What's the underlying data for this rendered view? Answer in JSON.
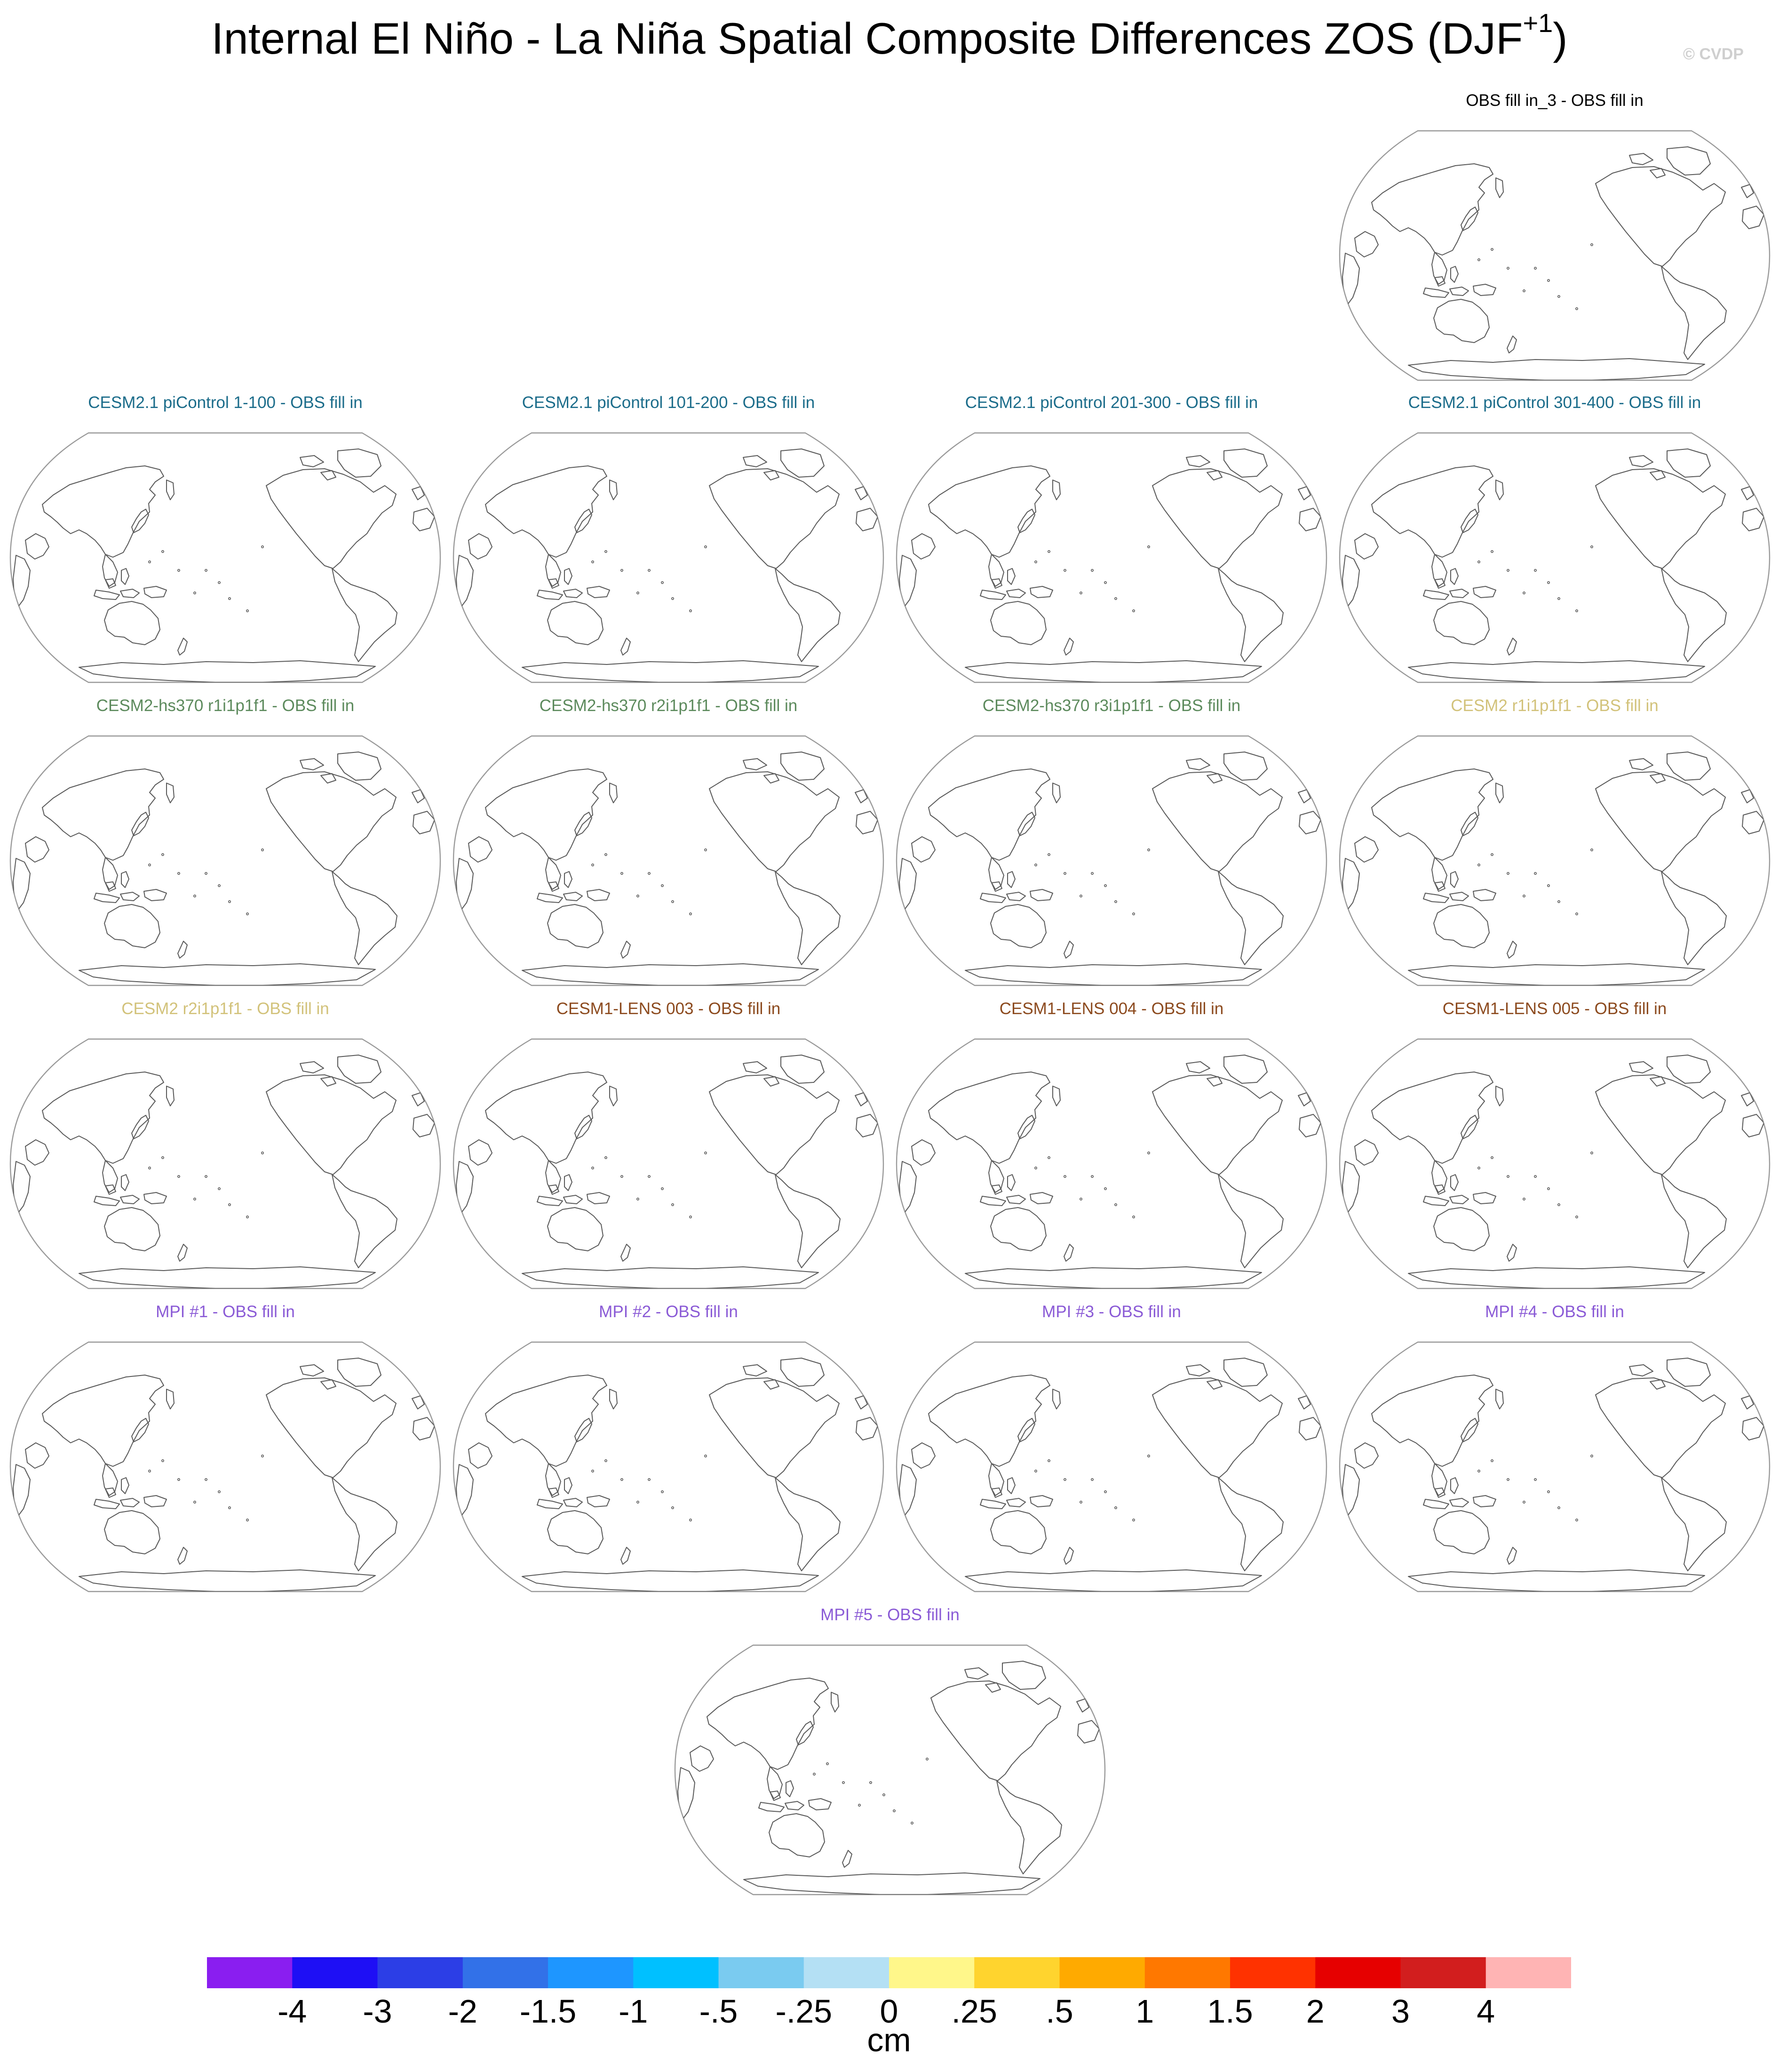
{
  "title": {
    "main": "Internal El Niño - La Niña Spatial Composite Differences ZOS (DJF",
    "sup": "+1",
    "close": ")"
  },
  "copyright": "© CVDP",
  "chart_data": [
    {
      "type": "heatmap",
      "title": "OBS fill in_3 - OBS fill in",
      "title_color": "#000000"
    },
    {
      "type": "heatmap",
      "title": "CESM2.1 piControl 1-100 - OBS fill in",
      "title_color": "#1b6c8a"
    },
    {
      "type": "heatmap",
      "title": "CESM2.1 piControl 101-200 - OBS fill in",
      "title_color": "#1b6c8a"
    },
    {
      "type": "heatmap",
      "title": "CESM2.1 piControl 201-300 - OBS fill in",
      "title_color": "#1b6c8a"
    },
    {
      "type": "heatmap",
      "title": "CESM2.1 piControl 301-400 - OBS fill in",
      "title_color": "#1b6c8a"
    },
    {
      "type": "heatmap",
      "title": "CESM2-hs370 r1i1p1f1 - OBS fill in",
      "title_color": "#5c8a5c"
    },
    {
      "type": "heatmap",
      "title": "CESM2-hs370 r2i1p1f1 - OBS fill in",
      "title_color": "#5c8a5c"
    },
    {
      "type": "heatmap",
      "title": "CESM2-hs370 r3i1p1f1 - OBS fill in",
      "title_color": "#5c8a5c"
    },
    {
      "type": "heatmap",
      "title": "CESM2 r1i1p1f1 - OBS fill in",
      "title_color": "#d2c27a"
    },
    {
      "type": "heatmap",
      "title": "CESM2 r2i1p1f1 - OBS fill in",
      "title_color": "#d2c27a"
    },
    {
      "type": "heatmap",
      "title": "CESM1-LENS 003 - OBS fill in",
      "title_color": "#8c4a1e"
    },
    {
      "type": "heatmap",
      "title": "CESM1-LENS 004 - OBS fill in",
      "title_color": "#8c4a1e"
    },
    {
      "type": "heatmap",
      "title": "CESM1-LENS 005 - OBS fill in",
      "title_color": "#8c4a1e"
    },
    {
      "type": "heatmap",
      "title": "MPI #1 - OBS fill in",
      "title_color": "#8a5ad6"
    },
    {
      "type": "heatmap",
      "title": "MPI #2 - OBS fill in",
      "title_color": "#8a5ad6"
    },
    {
      "type": "heatmap",
      "title": "MPI #3 - OBS fill in",
      "title_color": "#8a5ad6"
    },
    {
      "type": "heatmap",
      "title": "MPI #4 - OBS fill in",
      "title_color": "#8a5ad6"
    },
    {
      "type": "heatmap",
      "title": "MPI #5 - OBS fill in",
      "title_color": "#8a5ad6"
    }
  ],
  "colorbar": {
    "unit": "cm",
    "labels": [
      "-4",
      "-3",
      "-2",
      "-1.5",
      "-1",
      "-.5",
      "-.25",
      "0",
      ".25",
      ".5",
      "1",
      "1.5",
      "2",
      "3",
      "4"
    ],
    "colors": [
      "#8a1ef0",
      "#1e0ff5",
      "#2c3ee6",
      "#3271e8",
      "#1e96ff",
      "#00c0ff",
      "#7acbf0",
      "#b4e0f4",
      "#fff78a",
      "#ffd42e",
      "#ffaa00",
      "#ff7800",
      "#ff3200",
      "#e60000",
      "#d21e1e",
      "#ffb4b4"
    ]
  }
}
